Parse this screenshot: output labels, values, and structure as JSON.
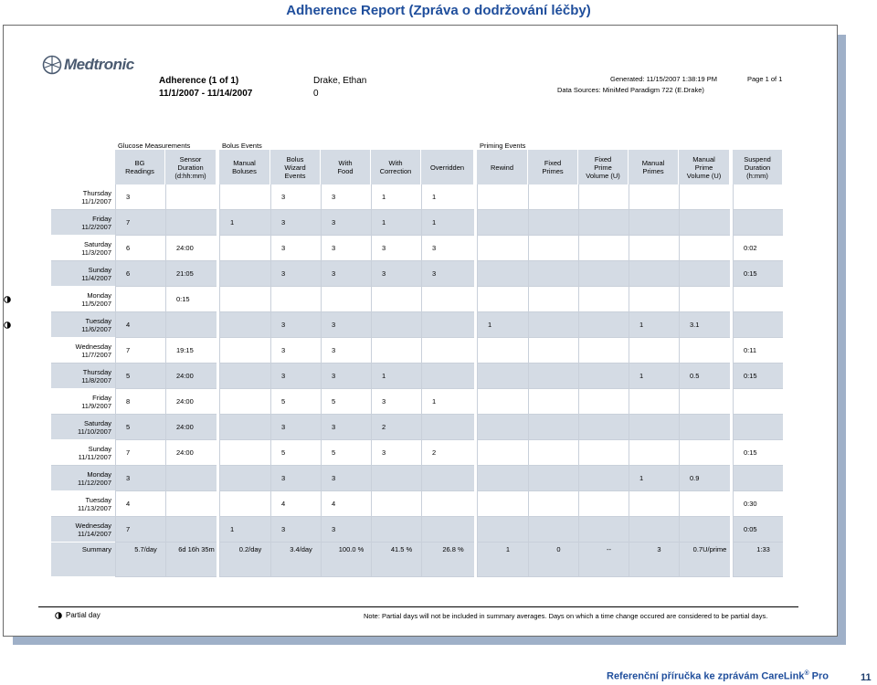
{
  "page_title": "Adherence Report (Zpráva o dodržování léčby)",
  "logo": {
    "text": "Medtronic"
  },
  "report_header": {
    "title": "Adherence (1 of 1)",
    "date_range": "11/1/2007 - 11/14/2007",
    "patient_name": "Drake, Ethan",
    "patient_id": "0",
    "generated": "Generated: 11/15/2007 1:38:19 PM",
    "data_sources": "Data Sources: MiniMed Paradigm 722 (E.Drake)",
    "page": "Page 1 of 1"
  },
  "groups": {
    "glucose": "Glucose Measurements",
    "bolus": "Bolus Events",
    "priming": "Priming Events"
  },
  "columns": [
    "BG\nReadings",
    "Sensor\nDuration\n(d:hh:mm)",
    "Manual\nBoluses",
    "Bolus\nWizard\nEvents",
    "With\nFood",
    "With\nCorrection",
    "Overridden",
    "Rewind",
    "Fixed\nPrimes",
    "Fixed\nPrime\nVolume (U)",
    "Manual\nPrimes",
    "Manual\nPrime\nVolume (U)",
    "Suspend\nDuration\n(h:mm)"
  ],
  "rows": [
    {
      "day": "Thursday",
      "date": "11/1/2007",
      "partial": false,
      "values": [
        "3",
        "",
        "",
        "3",
        "3",
        "1",
        "1",
        "",
        "",
        "",
        "",
        "",
        ""
      ]
    },
    {
      "day": "Friday",
      "date": "11/2/2007",
      "partial": false,
      "values": [
        "7",
        "",
        "1",
        "3",
        "3",
        "1",
        "1",
        "",
        "",
        "",
        "",
        "",
        ""
      ]
    },
    {
      "day": "Saturday",
      "date": "11/3/2007",
      "partial": false,
      "values": [
        "6",
        "24:00",
        "",
        "3",
        "3",
        "3",
        "3",
        "",
        "",
        "",
        "",
        "",
        "0:02"
      ]
    },
    {
      "day": "Sunday",
      "date": "11/4/2007",
      "partial": false,
      "values": [
        "6",
        "21:05",
        "",
        "3",
        "3",
        "3",
        "3",
        "",
        "",
        "",
        "",
        "",
        "0:15"
      ]
    },
    {
      "day": "Monday",
      "date": "11/5/2007",
      "partial": true,
      "values": [
        "",
        "0:15",
        "",
        "",
        "",
        "",
        "",
        "",
        "",
        "",
        "",
        "",
        ""
      ]
    },
    {
      "day": "Tuesday",
      "date": "11/6/2007",
      "partial": true,
      "values": [
        "4",
        "",
        "",
        "3",
        "3",
        "",
        "",
        "1",
        "",
        "",
        "1",
        "3.1",
        ""
      ]
    },
    {
      "day": "Wednesday",
      "date": "11/7/2007",
      "partial": false,
      "values": [
        "7",
        "19:15",
        "",
        "3",
        "3",
        "",
        "",
        "",
        "",
        "",
        "",
        "",
        "0:11"
      ]
    },
    {
      "day": "Thursday",
      "date": "11/8/2007",
      "partial": false,
      "values": [
        "5",
        "24:00",
        "",
        "3",
        "3",
        "1",
        "",
        "",
        "",
        "",
        "1",
        "0.5",
        "0:15"
      ]
    },
    {
      "day": "Friday",
      "date": "11/9/2007",
      "partial": false,
      "values": [
        "8",
        "24:00",
        "",
        "5",
        "5",
        "3",
        "1",
        "",
        "",
        "",
        "",
        "",
        ""
      ]
    },
    {
      "day": "Saturday",
      "date": "11/10/2007",
      "partial": false,
      "values": [
        "5",
        "24:00",
        "",
        "3",
        "3",
        "2",
        "",
        "",
        "",
        "",
        "",
        "",
        ""
      ]
    },
    {
      "day": "Sunday",
      "date": "11/11/2007",
      "partial": false,
      "values": [
        "7",
        "24:00",
        "",
        "5",
        "5",
        "3",
        "2",
        "",
        "",
        "",
        "",
        "",
        "0:15"
      ]
    },
    {
      "day": "Monday",
      "date": "11/12/2007",
      "partial": false,
      "values": [
        "3",
        "",
        "",
        "3",
        "3",
        "",
        "",
        "",
        "",
        "",
        "1",
        "0.9",
        ""
      ]
    },
    {
      "day": "Tuesday",
      "date": "11/13/2007",
      "partial": false,
      "values": [
        "4",
        "",
        "",
        "4",
        "4",
        "",
        "",
        "",
        "",
        "",
        "",
        "",
        "0:30"
      ]
    },
    {
      "day": "Wednesday",
      "date": "11/14/2007",
      "partial": false,
      "values": [
        "7",
        "",
        "1",
        "3",
        "3",
        "",
        "",
        "",
        "",
        "",
        "",
        "",
        "0:05"
      ]
    }
  ],
  "summary": {
    "label": "Summary",
    "values": [
      "5.7/day",
      "6d 16h 35m",
      "0.2/day",
      "3.4/day",
      "100.0 %",
      "41.5 %",
      "26.8 %",
      "1",
      "0",
      "--",
      "3",
      "0.7U/prime",
      "1:33"
    ]
  },
  "legend": {
    "label": "Partial day",
    "icon": "partial-day-icon"
  },
  "note": "Note: Partial days will not be included in summary averages. Days on which a time change occured are considered to be partial days.",
  "footer": {
    "title": "Referenční příručka ke zprávám CareLink",
    "reg": "®",
    "title_suffix": " Pro",
    "page_number": "11"
  },
  "colors": {
    "title_blue": "#1f4e9c",
    "cell_shade": "#d4dbe4"
  }
}
